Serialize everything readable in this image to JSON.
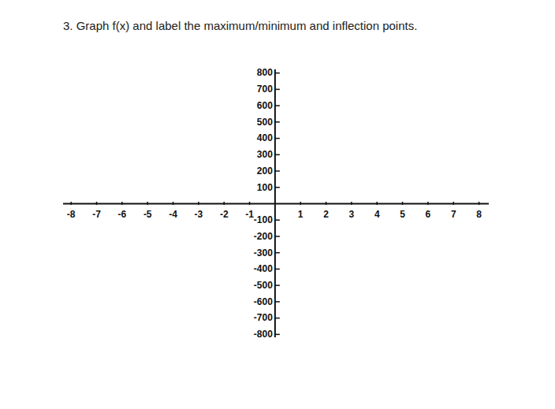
{
  "chart_data": {
    "type": "blank",
    "title": "3. Graph f(x) and label the maximum/minimum and inflection points.",
    "xlim": [
      -8.3,
      8.4
    ],
    "ylim": [
      -820,
      820
    ],
    "xticks": [
      -8,
      -7,
      -6,
      -5,
      -4,
      -3,
      -2,
      -1,
      1,
      2,
      3,
      4,
      5,
      6,
      7,
      8
    ],
    "yticks": [
      -800,
      -700,
      -600,
      -500,
      -400,
      -300,
      -200,
      -100,
      100,
      200,
      300,
      400,
      500,
      600,
      700,
      800
    ],
    "grid": false
  }
}
